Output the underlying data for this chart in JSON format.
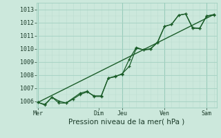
{
  "xlabel": "Pression niveau de la mer( hPa )",
  "bg_color": "#cce8dc",
  "grid_color_major": "#99ccbb",
  "grid_color_minor": "#bbddd0",
  "line_color": "#1a5c28",
  "ylim": [
    1005.5,
    1013.5
  ],
  "yticks": [
    1006,
    1007,
    1008,
    1009,
    1010,
    1011,
    1012,
    1013
  ],
  "x_day_labels": [
    "Mer",
    "Dim",
    "Jeu",
    "Ven",
    "Sam"
  ],
  "x_day_positions": [
    0.0,
    4.33,
    6.0,
    9.0,
    12.0
  ],
  "xmin": -0.1,
  "xmax": 12.7,
  "line1_x": [
    0,
    0.5,
    1,
    1.5,
    2,
    2.5,
    3,
    3.5,
    4,
    4.5,
    5,
    5.5,
    6,
    6.5,
    7,
    7.5,
    8,
    8.5,
    9,
    9.5,
    10,
    10.5,
    11,
    11.5,
    12,
    12.5
  ],
  "line1_y": [
    1005.9,
    1005.75,
    1006.3,
    1005.85,
    1005.85,
    1006.15,
    1006.5,
    1006.7,
    1006.4,
    1006.4,
    1007.75,
    1007.85,
    1008.1,
    1008.65,
    1010.05,
    1009.9,
    1009.95,
    1010.5,
    1011.7,
    1011.85,
    1012.55,
    1012.65,
    1011.6,
    1011.55,
    1012.5,
    1012.55
  ],
  "line2_x": [
    0,
    0.5,
    1,
    1.5,
    2,
    3,
    3.5,
    4,
    4.5,
    5,
    5.5,
    6,
    6.5,
    7,
    7.5,
    8,
    8.5,
    9,
    9.5,
    10,
    10.5,
    11,
    11.5,
    12,
    12.5
  ],
  "line2_y": [
    1005.9,
    1005.7,
    1006.3,
    1006.0,
    1005.85,
    1006.6,
    1006.75,
    1006.35,
    1006.35,
    1007.75,
    1007.9,
    1008.05,
    1009.2,
    1010.1,
    1009.9,
    1010.0,
    1010.45,
    1011.7,
    1011.85,
    1012.55,
    1012.65,
    1011.55,
    1011.55,
    1012.5,
    1012.6
  ],
  "trend_x": [
    0,
    12.5
  ],
  "trend_y": [
    1005.9,
    1012.6
  ]
}
